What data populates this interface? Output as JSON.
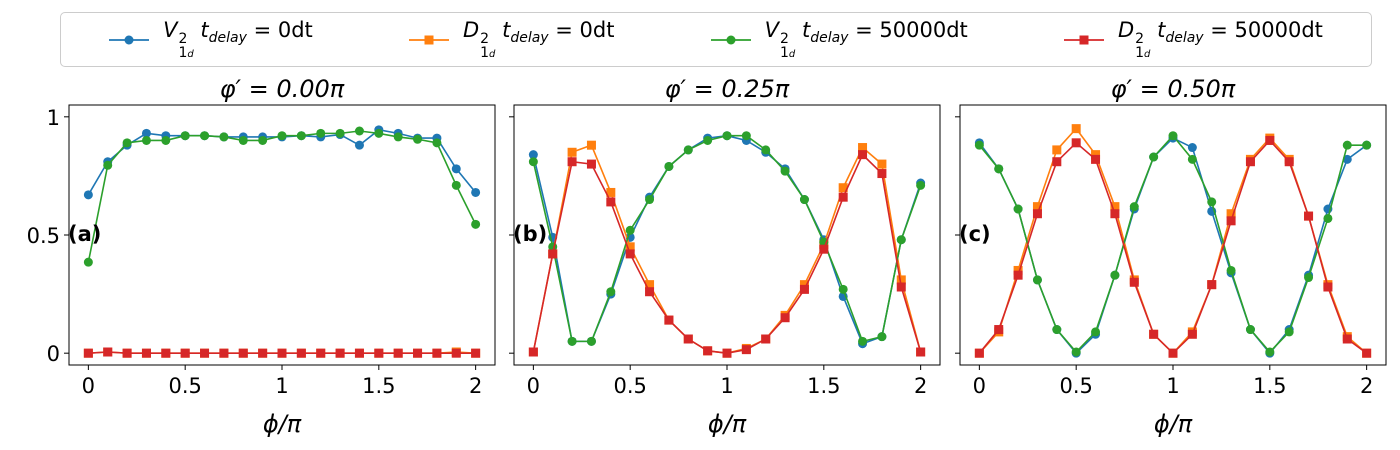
{
  "chart_data": [
    {
      "type": "line",
      "panel_label": "(a)",
      "title": "φ′ = 0.00π",
      "xlabel": "ϕ/π",
      "ylabel": "",
      "xlim": [
        -0.1,
        2.1
      ],
      "ylim": [
        -0.05,
        1.05
      ],
      "xticks": [
        "0",
        "0.5",
        "1",
        "1.5",
        "2"
      ],
      "yticks": [
        "0",
        "0.5",
        "1"
      ],
      "show_ytick_labels": true,
      "x": [
        0,
        0.1,
        0.2,
        0.3,
        0.4,
        0.5,
        0.6,
        0.7,
        0.8,
        0.9,
        1.0,
        1.1,
        1.2,
        1.3,
        1.4,
        1.5,
        1.6,
        1.7,
        1.8,
        1.9,
        2.0
      ],
      "series": [
        {
          "key": "V0",
          "values": [
            0.67,
            0.81,
            0.88,
            0.93,
            0.92,
            0.92,
            0.92,
            0.915,
            0.915,
            0.915,
            0.915,
            0.92,
            0.915,
            0.925,
            0.88,
            0.945,
            0.93,
            0.91,
            0.91,
            0.78,
            0.68
          ]
        },
        {
          "key": "D0",
          "values": [
            0.0,
            0.005,
            0.0,
            0.0,
            0.0,
            0.0,
            0.0,
            0.0,
            0.0,
            0.0,
            0.0,
            0.0,
            0.0,
            0.0,
            0.0,
            0.0,
            0.0,
            0.0,
            0.0,
            0.005,
            0.0
          ]
        },
        {
          "key": "V50000",
          "values": [
            0.385,
            0.795,
            0.89,
            0.9,
            0.9,
            0.92,
            0.92,
            0.915,
            0.9,
            0.9,
            0.92,
            0.92,
            0.93,
            0.93,
            0.94,
            0.93,
            0.915,
            0.905,
            0.89,
            0.71,
            0.545
          ]
        },
        {
          "key": "D50000",
          "values": [
            0.0,
            0.005,
            0.0,
            0.0,
            0.0,
            0.0,
            0.0,
            0.0,
            0.0,
            0.0,
            0.0,
            0.0,
            0.0,
            0.0,
            0.0,
            0.0,
            0.0,
            0.0,
            0.0,
            0.0,
            0.0
          ]
        }
      ]
    },
    {
      "type": "line",
      "panel_label": "(b)",
      "title": "φ′ = 0.25π",
      "xlabel": "ϕ/π",
      "ylabel": "",
      "xlim": [
        -0.1,
        2.1
      ],
      "ylim": [
        -0.05,
        1.05
      ],
      "xticks": [
        "0",
        "0.5",
        "1",
        "1.5",
        "2"
      ],
      "yticks": [
        "0",
        "0.5",
        "1"
      ],
      "show_ytick_labels": false,
      "x": [
        0,
        0.1,
        0.2,
        0.3,
        0.4,
        0.5,
        0.6,
        0.7,
        0.8,
        0.9,
        1.0,
        1.1,
        1.2,
        1.3,
        1.4,
        1.5,
        1.6,
        1.7,
        1.8,
        1.9,
        2.0
      ],
      "series": [
        {
          "key": "V0",
          "values": [
            0.84,
            0.49,
            0.05,
            0.05,
            0.25,
            0.49,
            0.66,
            0.79,
            0.86,
            0.91,
            0.92,
            0.9,
            0.85,
            0.78,
            0.65,
            0.48,
            0.24,
            0.04,
            0.07,
            0.48,
            0.72
          ]
        },
        {
          "key": "D0",
          "values": [
            0.005,
            0.42,
            0.85,
            0.88,
            0.68,
            0.45,
            0.29,
            0.14,
            0.06,
            0.01,
            0.0,
            0.02,
            0.06,
            0.16,
            0.29,
            0.46,
            0.7,
            0.87,
            0.8,
            0.31,
            0.005
          ]
        },
        {
          "key": "V50000",
          "values": [
            0.81,
            0.45,
            0.05,
            0.05,
            0.26,
            0.52,
            0.65,
            0.79,
            0.86,
            0.9,
            0.92,
            0.92,
            0.86,
            0.77,
            0.65,
            0.47,
            0.27,
            0.05,
            0.07,
            0.48,
            0.71
          ]
        },
        {
          "key": "D50000",
          "values": [
            0.005,
            0.42,
            0.81,
            0.8,
            0.64,
            0.42,
            0.26,
            0.14,
            0.06,
            0.01,
            0.0,
            0.015,
            0.06,
            0.15,
            0.27,
            0.44,
            0.66,
            0.84,
            0.76,
            0.28,
            0.005
          ]
        }
      ]
    },
    {
      "type": "line",
      "panel_label": "(c)",
      "title": "φ′ = 0.50π",
      "xlabel": "ϕ/π",
      "ylabel": "",
      "xlim": [
        -0.1,
        2.1
      ],
      "ylim": [
        -0.05,
        1.05
      ],
      "xticks": [
        "0",
        "0.5",
        "1",
        "1.5",
        "2"
      ],
      "yticks": [
        "0",
        "0.5",
        "1"
      ],
      "show_ytick_labels": false,
      "x": [
        0,
        0.1,
        0.2,
        0.3,
        0.4,
        0.5,
        0.6,
        0.7,
        0.8,
        0.9,
        1.0,
        1.1,
        1.2,
        1.3,
        1.4,
        1.5,
        1.6,
        1.7,
        1.8,
        1.9,
        2.0
      ],
      "series": [
        {
          "key": "V0",
          "values": [
            0.89,
            0.78,
            0.61,
            0.31,
            0.1,
            0.0,
            0.08,
            0.33,
            0.61,
            0.83,
            0.91,
            0.87,
            0.6,
            0.34,
            0.1,
            0.0,
            0.1,
            0.33,
            0.61,
            0.82,
            0.88
          ]
        },
        {
          "key": "D0",
          "values": [
            0.0,
            0.09,
            0.35,
            0.62,
            0.86,
            0.95,
            0.84,
            0.62,
            0.31,
            0.08,
            0.0,
            0.09,
            0.29,
            0.59,
            0.82,
            0.91,
            0.82,
            0.58,
            0.29,
            0.07,
            0.0
          ]
        },
        {
          "key": "V50000",
          "values": [
            0.88,
            0.78,
            0.61,
            0.31,
            0.1,
            0.005,
            0.09,
            0.33,
            0.62,
            0.83,
            0.92,
            0.82,
            0.64,
            0.35,
            0.1,
            0.005,
            0.09,
            0.32,
            0.57,
            0.88,
            0.88
          ]
        },
        {
          "key": "D50000",
          "values": [
            0.0,
            0.1,
            0.33,
            0.59,
            0.81,
            0.89,
            0.82,
            0.59,
            0.3,
            0.08,
            0.0,
            0.08,
            0.29,
            0.56,
            0.81,
            0.9,
            0.81,
            0.58,
            0.28,
            0.06,
            0.0
          ]
        }
      ]
    }
  ],
  "legend": {
    "placement": "top",
    "entries": [
      {
        "key": "V0",
        "symbol": "V",
        "sup": "2",
        "sub": "1",
        "subsub": "d",
        "param": "t",
        "param_sub": "delay",
        "value": " = 0dt",
        "color": "#1f77b4",
        "marker": "circle"
      },
      {
        "key": "D0",
        "symbol": "D",
        "sup": "2",
        "sub": "1",
        "subsub": "d",
        "param": "t",
        "param_sub": "delay",
        "value": " = 0dt",
        "color": "#ff7f0e",
        "marker": "square"
      },
      {
        "key": "V50000",
        "symbol": "V",
        "sup": "2",
        "sub": "1",
        "subsub": "d",
        "param": "t",
        "param_sub": "delay",
        "value": " = 50000dt",
        "color": "#2ca02c",
        "marker": "circle"
      },
      {
        "key": "D50000",
        "symbol": "D",
        "sup": "2",
        "sub": "1",
        "subsub": "d",
        "param": "t",
        "param_sub": "delay",
        "value": " = 50000dt",
        "color": "#d62728",
        "marker": "square"
      }
    ]
  }
}
